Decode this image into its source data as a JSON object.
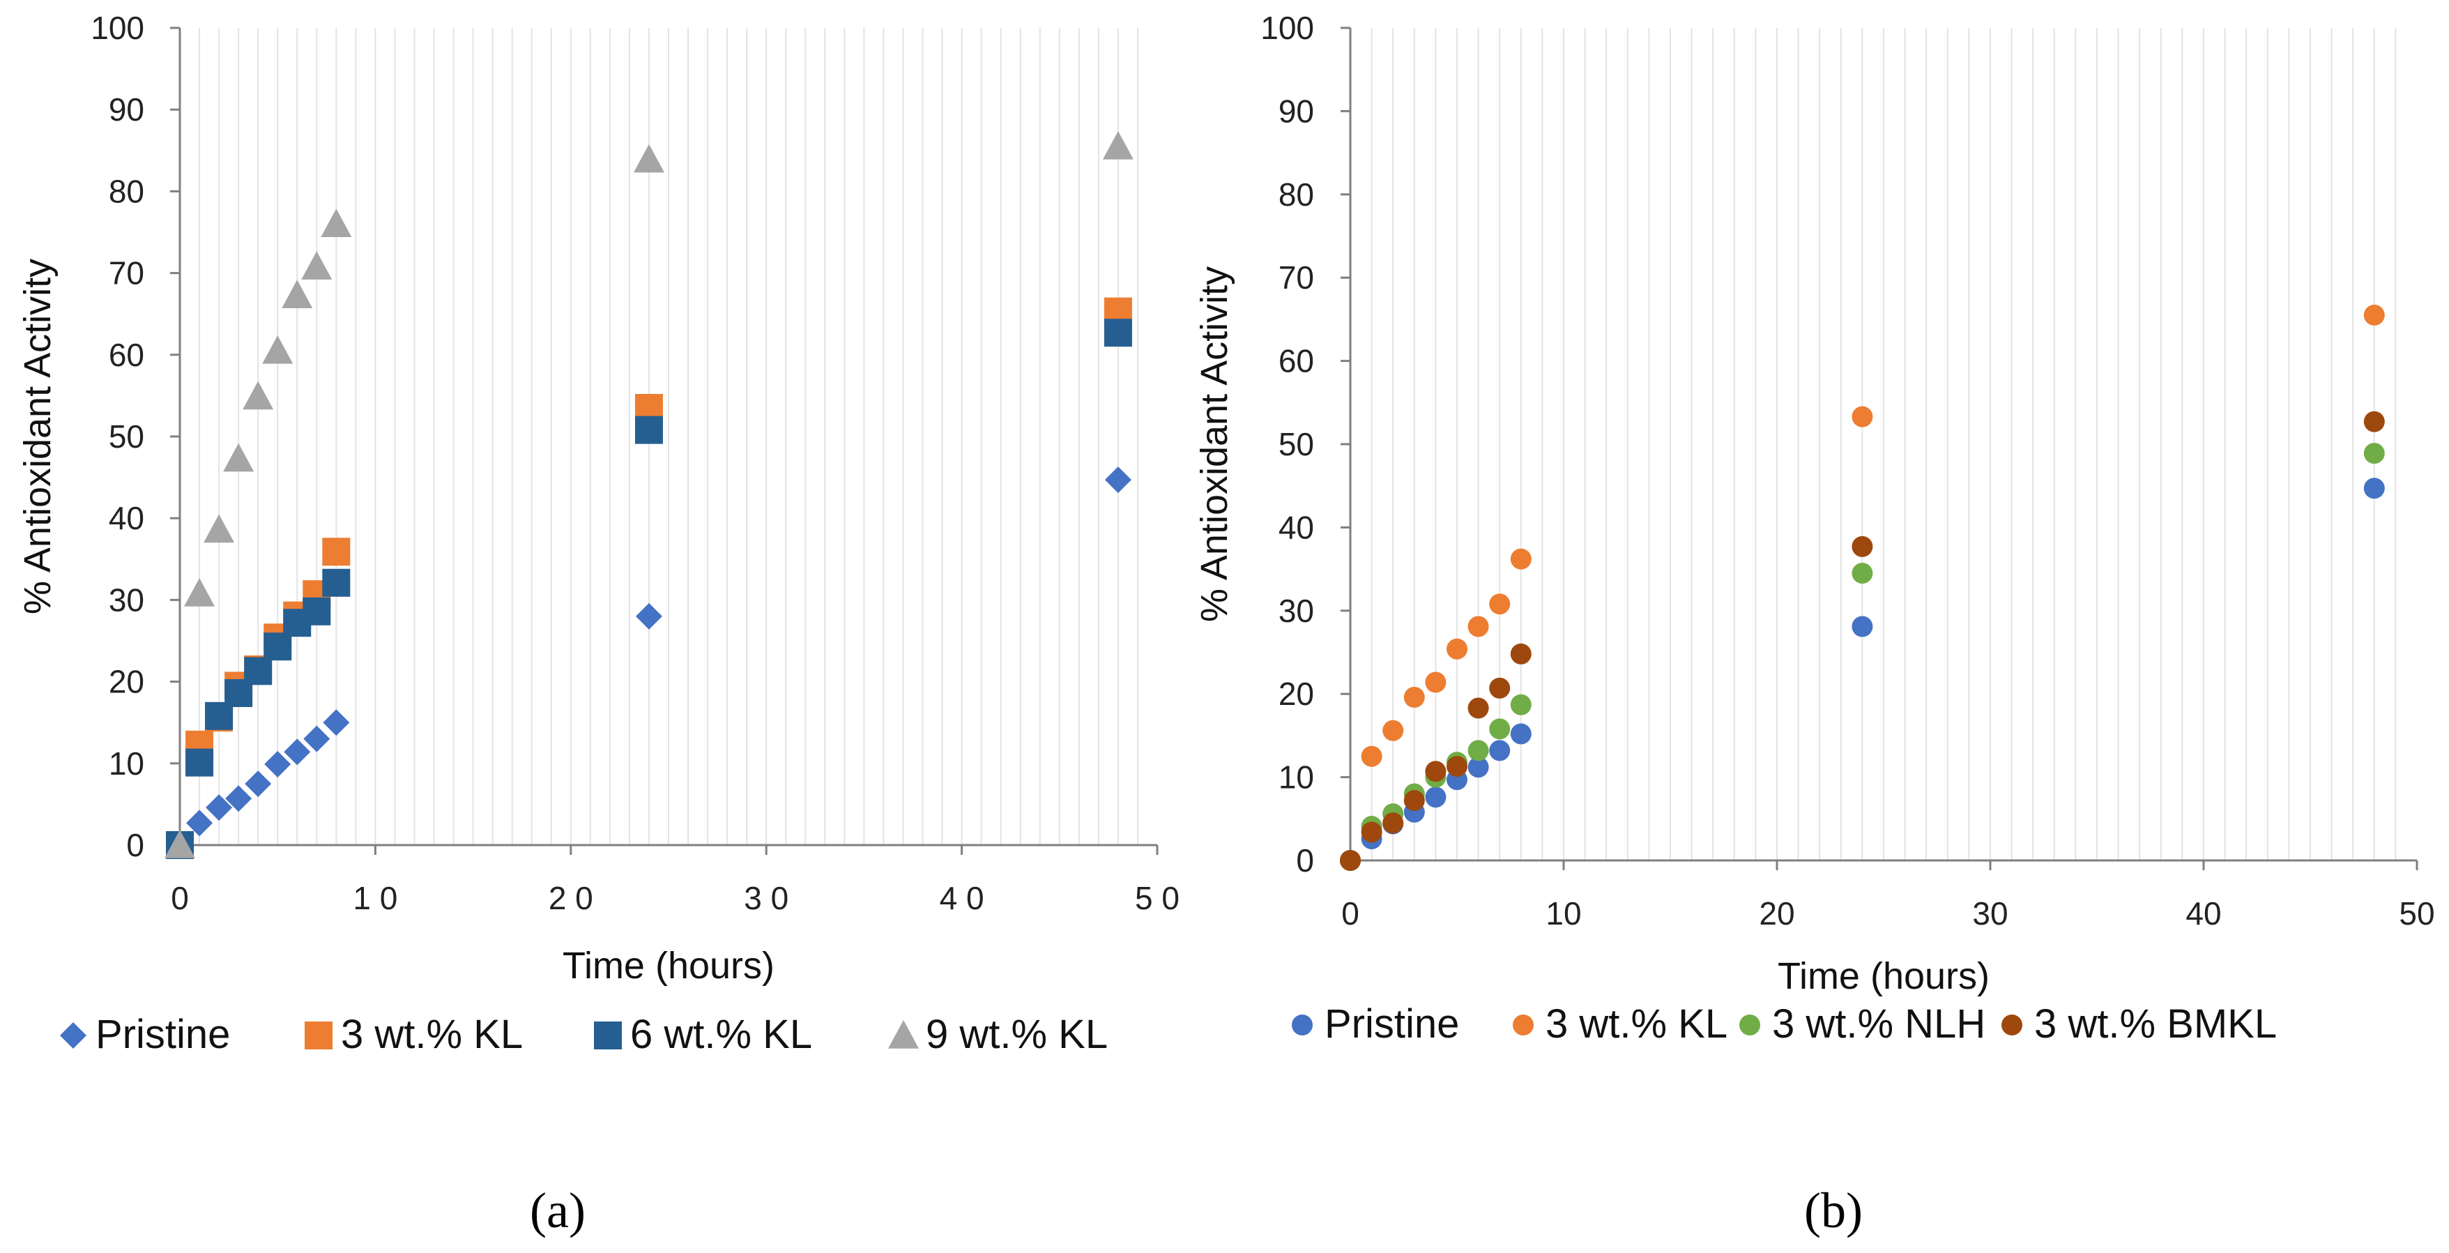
{
  "chart_data": [
    {
      "type": "scatter",
      "panel_label": "(a)",
      "title": "",
      "xlabel": "Time (hours)",
      "ylabel": "% Antioxidant Activity",
      "xlim": [
        0,
        50
      ],
      "ylim": [
        0,
        100
      ],
      "xticks": [
        0,
        10,
        20,
        30,
        40,
        50
      ],
      "yticks": [
        0,
        10,
        20,
        30,
        40,
        50,
        60,
        70,
        80,
        90,
        100
      ],
      "x_tick_labels": [
        "0",
        "1 0",
        "2 0",
        "3 0",
        "4 0",
        "5 0"
      ],
      "x_minor_grid_step": 1,
      "legend_position": "bottom",
      "series": [
        {
          "name": "Pristine",
          "marker": "diamond",
          "color": "#4472C4",
          "x": [
            0,
            1,
            2,
            3,
            4,
            5,
            6,
            7,
            8,
            24,
            48
          ],
          "y": [
            0,
            2.7,
            4.6,
            5.7,
            7.5,
            9.9,
            11.4,
            13.0,
            15.0,
            28.0,
            44.7
          ]
        },
        {
          "name": "3 wt.% KL",
          "marker": "square",
          "color": "#ED7D31",
          "x": [
            0,
            1,
            2,
            3,
            4,
            5,
            6,
            7,
            8,
            24,
            48
          ],
          "y": [
            0,
            12.3,
            15.6,
            19.5,
            21.5,
            25.4,
            28.1,
            30.7,
            35.9,
            53.5,
            65.3
          ]
        },
        {
          "name": "6 wt.% KL",
          "marker": "square",
          "color": "#255E91",
          "x": [
            0,
            1,
            2,
            3,
            4,
            5,
            6,
            7,
            8,
            24,
            48
          ],
          "y": [
            0,
            10.1,
            15.8,
            18.6,
            21.3,
            24.3,
            27.2,
            28.6,
            32.1,
            50.8,
            62.7
          ]
        },
        {
          "name": "9 wt.% KL",
          "marker": "triangle",
          "color": "#A5A5A5",
          "x": [
            0,
            1,
            2,
            3,
            4,
            5,
            6,
            7,
            8,
            24,
            48
          ],
          "y": [
            0,
            30.8,
            38.6,
            47.3,
            54.9,
            60.5,
            67.3,
            70.8,
            76.0,
            83.9,
            85.5
          ]
        }
      ]
    },
    {
      "type": "scatter",
      "panel_label": "(b)",
      "title": "",
      "xlabel": "Time (hours)",
      "ylabel": "% Antioxidant Activity",
      "xlim": [
        0,
        50
      ],
      "ylim": [
        0,
        100
      ],
      "xticks": [
        0,
        10,
        20,
        30,
        40,
        50
      ],
      "yticks": [
        0,
        10,
        20,
        30,
        40,
        50,
        60,
        70,
        80,
        90,
        100
      ],
      "x_tick_labels": [
        "0",
        "10",
        "20",
        "30",
        "40",
        "50"
      ],
      "x_minor_grid_step": 1,
      "legend_position": "bottom",
      "series": [
        {
          "name": "Pristine",
          "marker": "circle",
          "color": "#4472C4",
          "x": [
            0,
            1,
            2,
            3,
            4,
            5,
            6,
            7,
            8,
            24,
            48
          ],
          "y": [
            0,
            2.6,
            4.4,
            5.8,
            7.6,
            9.7,
            11.2,
            13.2,
            15.2,
            28.1,
            44.7
          ]
        },
        {
          "name": "3 wt.% KL",
          "marker": "circle",
          "color": "#ED7D31",
          "x": [
            0,
            1,
            2,
            3,
            4,
            5,
            6,
            7,
            8,
            24,
            48
          ],
          "y": [
            0,
            12.5,
            15.6,
            19.6,
            21.4,
            25.4,
            28.1,
            30.8,
            36.2,
            53.3,
            65.5
          ]
        },
        {
          "name": "3 wt.% NLH",
          "marker": "circle",
          "color": "#70AD47",
          "x": [
            0,
            1,
            2,
            3,
            4,
            5,
            6,
            7,
            8,
            24,
            48
          ],
          "y": [
            0,
            4.1,
            5.6,
            8.0,
            10.0,
            11.8,
            13.2,
            15.8,
            18.7,
            34.5,
            48.9
          ]
        },
        {
          "name": "3 wt.% BMKL",
          "marker": "circle",
          "color": "#9E480E",
          "x": [
            0,
            1,
            2,
            3,
            4,
            5,
            6,
            7,
            8,
            24,
            48
          ],
          "y": [
            0,
            3.4,
            4.5,
            7.2,
            10.7,
            11.3,
            18.3,
            20.7,
            24.8,
            37.7,
            52.7
          ]
        }
      ]
    }
  ]
}
